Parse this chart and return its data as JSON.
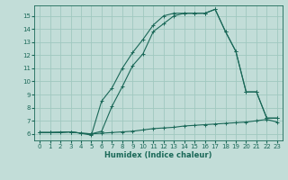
{
  "xlabel": "Humidex (Indice chaleur)",
  "bg_color": "#c2ddd8",
  "grid_color": "#a0c8c0",
  "line_color": "#1a6858",
  "xlim": [
    -0.5,
    23.5
  ],
  "ylim": [
    5.5,
    15.8
  ],
  "xticks": [
    0,
    1,
    2,
    3,
    4,
    5,
    6,
    7,
    8,
    9,
    10,
    11,
    12,
    13,
    14,
    15,
    16,
    17,
    18,
    19,
    20,
    21,
    22,
    23
  ],
  "yticks": [
    6,
    7,
    8,
    9,
    10,
    11,
    12,
    13,
    14,
    15
  ],
  "series": [
    {
      "x": [
        0,
        1,
        2,
        3,
        4,
        5,
        6,
        7,
        8,
        9,
        10,
        11,
        12,
        13,
        14,
        15,
        16,
        17,
        18,
        19,
        20,
        21,
        22,
        23
      ],
      "y": [
        6.1,
        6.1,
        6.1,
        6.15,
        6.05,
        6.0,
        6.05,
        6.1,
        6.15,
        6.2,
        6.3,
        6.4,
        6.45,
        6.5,
        6.6,
        6.65,
        6.7,
        6.75,
        6.8,
        6.85,
        6.9,
        7.0,
        7.1,
        6.9
      ]
    },
    {
      "x": [
        0,
        1,
        3,
        4,
        5,
        6,
        7,
        8,
        9,
        10,
        11,
        12,
        13,
        14,
        15,
        16,
        17,
        18,
        19,
        20,
        21,
        22,
        23
      ],
      "y": [
        6.1,
        6.1,
        6.15,
        6.05,
        6.0,
        6.2,
        8.1,
        9.6,
        11.2,
        12.1,
        13.8,
        14.4,
        15.0,
        15.2,
        15.2,
        15.2,
        15.5,
        13.8,
        12.3,
        9.2,
        9.2,
        7.2,
        7.2
      ]
    },
    {
      "x": [
        0,
        1,
        3,
        4,
        5,
        6,
        7,
        8,
        9,
        10,
        11,
        12,
        13,
        14,
        15,
        16,
        17,
        18,
        19,
        20,
        21,
        22,
        23
      ],
      "y": [
        6.1,
        6.1,
        6.15,
        6.05,
        5.9,
        8.5,
        9.5,
        11.0,
        12.2,
        13.2,
        14.3,
        15.0,
        15.2,
        15.2,
        15.2,
        15.2,
        15.5,
        13.8,
        12.3,
        9.2,
        9.2,
        7.2,
        7.2
      ]
    }
  ]
}
